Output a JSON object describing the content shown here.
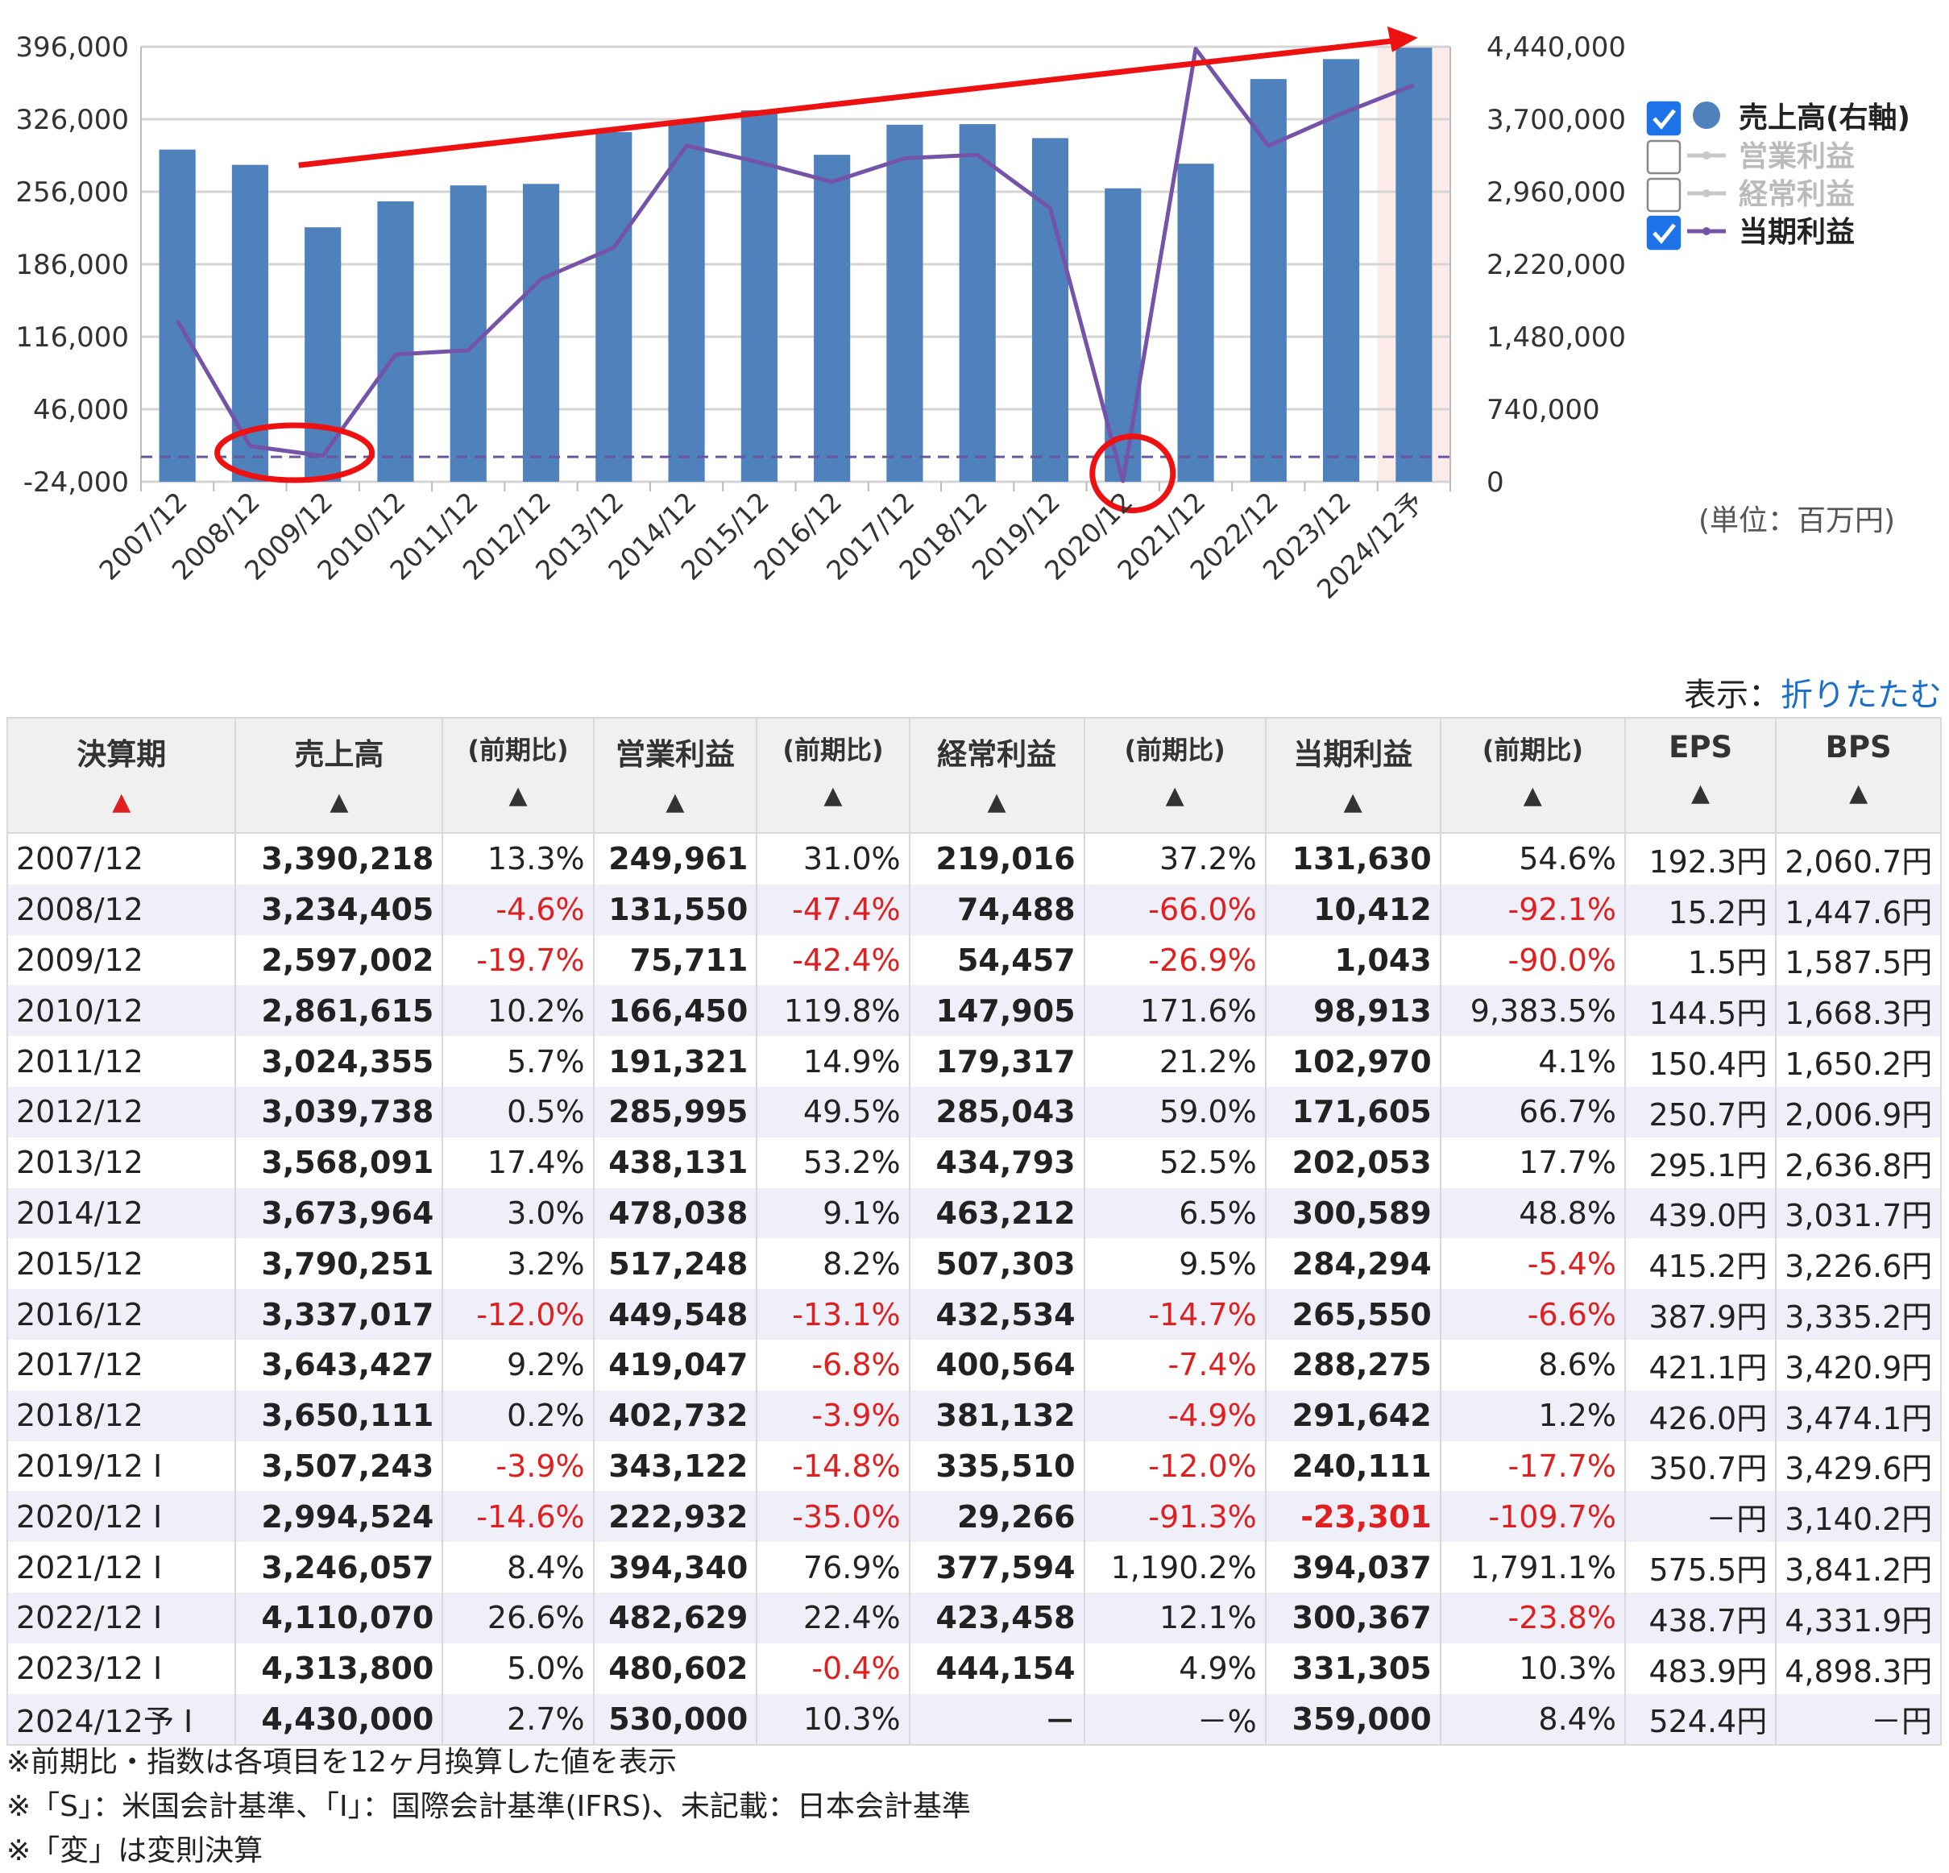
{
  "chart_data": {
    "type": "bar+line",
    "categories": [
      "2007/12",
      "2008/12",
      "2009/12",
      "2010/12",
      "2011/12",
      "2012/12",
      "2013/12",
      "2014/12",
      "2015/12",
      "2016/12",
      "2017/12",
      "2018/12",
      "2019/12",
      "2020/12",
      "2021/12",
      "2022/12",
      "2023/12",
      "2024/12予"
    ],
    "left_axis": {
      "ticks": [
        "396,000",
        "326,000",
        "256,000",
        "186,000",
        "116,000",
        "46,000",
        "-24,000"
      ],
      "min": -24000,
      "max": 396000
    },
    "right_axis": {
      "ticks": [
        "4,440,000",
        "3,700,000",
        "2,960,000",
        "2,220,000",
        "1,480,000",
        "740,000",
        "0"
      ],
      "min": 0,
      "max": 4440000
    },
    "unit": "(単位：百万円)",
    "series": [
      {
        "name": "売上高(右軸)",
        "type": "bar",
        "axis": "right",
        "checked": true,
        "color": "#4f81bd",
        "values": [
          3390218,
          3234405,
          2597002,
          2861615,
          3024355,
          3039738,
          3568091,
          3673964,
          3790251,
          3337017,
          3643427,
          3650111,
          3507243,
          2994524,
          3246057,
          4110070,
          4313800,
          4430000
        ]
      },
      {
        "name": "営業利益",
        "type": "line",
        "checked": false,
        "color": "#c8c8c8"
      },
      {
        "name": "経常利益",
        "type": "line",
        "checked": false,
        "color": "#c8c8c8"
      },
      {
        "name": "当期利益",
        "type": "line",
        "axis": "left",
        "checked": true,
        "color": "#7453a8",
        "values": [
          131630,
          10412,
          1043,
          98913,
          102970,
          171605,
          202053,
          300589,
          284294,
          265550,
          288275,
          291642,
          240111,
          -23301,
          394037,
          300367,
          331305,
          359000
        ]
      }
    ],
    "forecast_highlight": "2024/12予",
    "zero_line_color": "#6a55a0",
    "annotation_color": "#ee1111"
  },
  "display": {
    "label": "表示：",
    "toggle": "折りたたむ"
  },
  "table": {
    "headers": [
      {
        "label": "決算期",
        "arrow": "▲",
        "active": true
      },
      {
        "label": "売上高",
        "arrow": "▲"
      },
      {
        "label": "(前期比)",
        "arrow": "▲",
        "sub": true
      },
      {
        "label": "営業利益",
        "arrow": "▲"
      },
      {
        "label": "(前期比)",
        "arrow": "▲",
        "sub": true
      },
      {
        "label": "経常利益",
        "arrow": "▲"
      },
      {
        "label": "(前期比)",
        "arrow": "▲",
        "sub": true
      },
      {
        "label": "当期利益",
        "arrow": "▲"
      },
      {
        "label": "(前期比)",
        "arrow": "▲",
        "sub": true
      },
      {
        "label": "EPS",
        "arrow": "▲"
      },
      {
        "label": "BPS",
        "arrow": "▲"
      }
    ],
    "rows": [
      [
        "2007/12",
        "3,390,218",
        "13.3%",
        "249,961",
        "31.0%",
        "219,016",
        "37.2%",
        "131,630",
        "54.6%",
        "192.3円",
        "2,060.7円"
      ],
      [
        "2008/12",
        "3,234,405",
        "-4.6%",
        "131,550",
        "-47.4%",
        "74,488",
        "-66.0%",
        "10,412",
        "-92.1%",
        "15.2円",
        "1,447.6円"
      ],
      [
        "2009/12",
        "2,597,002",
        "-19.7%",
        "75,711",
        "-42.4%",
        "54,457",
        "-26.9%",
        "1,043",
        "-90.0%",
        "1.5円",
        "1,587.5円"
      ],
      [
        "2010/12",
        "2,861,615",
        "10.2%",
        "166,450",
        "119.8%",
        "147,905",
        "171.6%",
        "98,913",
        "9,383.5%",
        "144.5円",
        "1,668.3円"
      ],
      [
        "2011/12",
        "3,024,355",
        "5.7%",
        "191,321",
        "14.9%",
        "179,317",
        "21.2%",
        "102,970",
        "4.1%",
        "150.4円",
        "1,650.2円"
      ],
      [
        "2012/12",
        "3,039,738",
        "0.5%",
        "285,995",
        "49.5%",
        "285,043",
        "59.0%",
        "171,605",
        "66.7%",
        "250.7円",
        "2,006.9円"
      ],
      [
        "2013/12",
        "3,568,091",
        "17.4%",
        "438,131",
        "53.2%",
        "434,793",
        "52.5%",
        "202,053",
        "17.7%",
        "295.1円",
        "2,636.8円"
      ],
      [
        "2014/12",
        "3,673,964",
        "3.0%",
        "478,038",
        "9.1%",
        "463,212",
        "6.5%",
        "300,589",
        "48.8%",
        "439.0円",
        "3,031.7円"
      ],
      [
        "2015/12",
        "3,790,251",
        "3.2%",
        "517,248",
        "8.2%",
        "507,303",
        "9.5%",
        "284,294",
        "-5.4%",
        "415.2円",
        "3,226.6円"
      ],
      [
        "2016/12",
        "3,337,017",
        "-12.0%",
        "449,548",
        "-13.1%",
        "432,534",
        "-14.7%",
        "265,550",
        "-6.6%",
        "387.9円",
        "3,335.2円"
      ],
      [
        "2017/12",
        "3,643,427",
        "9.2%",
        "419,047",
        "-6.8%",
        "400,564",
        "-7.4%",
        "288,275",
        "8.6%",
        "421.1円",
        "3,420.9円"
      ],
      [
        "2018/12",
        "3,650,111",
        "0.2%",
        "402,732",
        "-3.9%",
        "381,132",
        "-4.9%",
        "291,642",
        "1.2%",
        "426.0円",
        "3,474.1円"
      ],
      [
        "2019/12 I",
        "3,507,243",
        "-3.9%",
        "343,122",
        "-14.8%",
        "335,510",
        "-12.0%",
        "240,111",
        "-17.7%",
        "350.7円",
        "3,429.6円"
      ],
      [
        "2020/12 I",
        "2,994,524",
        "-14.6%",
        "222,932",
        "-35.0%",
        "29,266",
        "-91.3%",
        "-23,301",
        "-109.7%",
        "－円",
        "3,140.2円"
      ],
      [
        "2021/12 I",
        "3,246,057",
        "8.4%",
        "394,340",
        "76.9%",
        "377,594",
        "1,190.2%",
        "394,037",
        "1,791.1%",
        "575.5円",
        "3,841.2円"
      ],
      [
        "2022/12 I",
        "4,110,070",
        "26.6%",
        "482,629",
        "22.4%",
        "423,458",
        "12.1%",
        "300,367",
        "-23.8%",
        "438.7円",
        "4,331.9円"
      ],
      [
        "2023/12 I",
        "4,313,800",
        "5.0%",
        "480,602",
        "-0.4%",
        "444,154",
        "4.9%",
        "331,305",
        "10.3%",
        "483.9円",
        "4,898.3円"
      ],
      [
        "2024/12予 I",
        "4,430,000",
        "2.7%",
        "530,000",
        "10.3%",
        "－",
        "－%",
        "359,000",
        "8.4%",
        "524.4円",
        "－円"
      ]
    ]
  },
  "notes": [
    "※前期比・指数は各項目を12ヶ月換算した値を表示",
    "※「S」：米国会計基準、「I」：国際会計基準(IFRS)、未記載：日本会計基準",
    "※「変」は変則決算"
  ]
}
